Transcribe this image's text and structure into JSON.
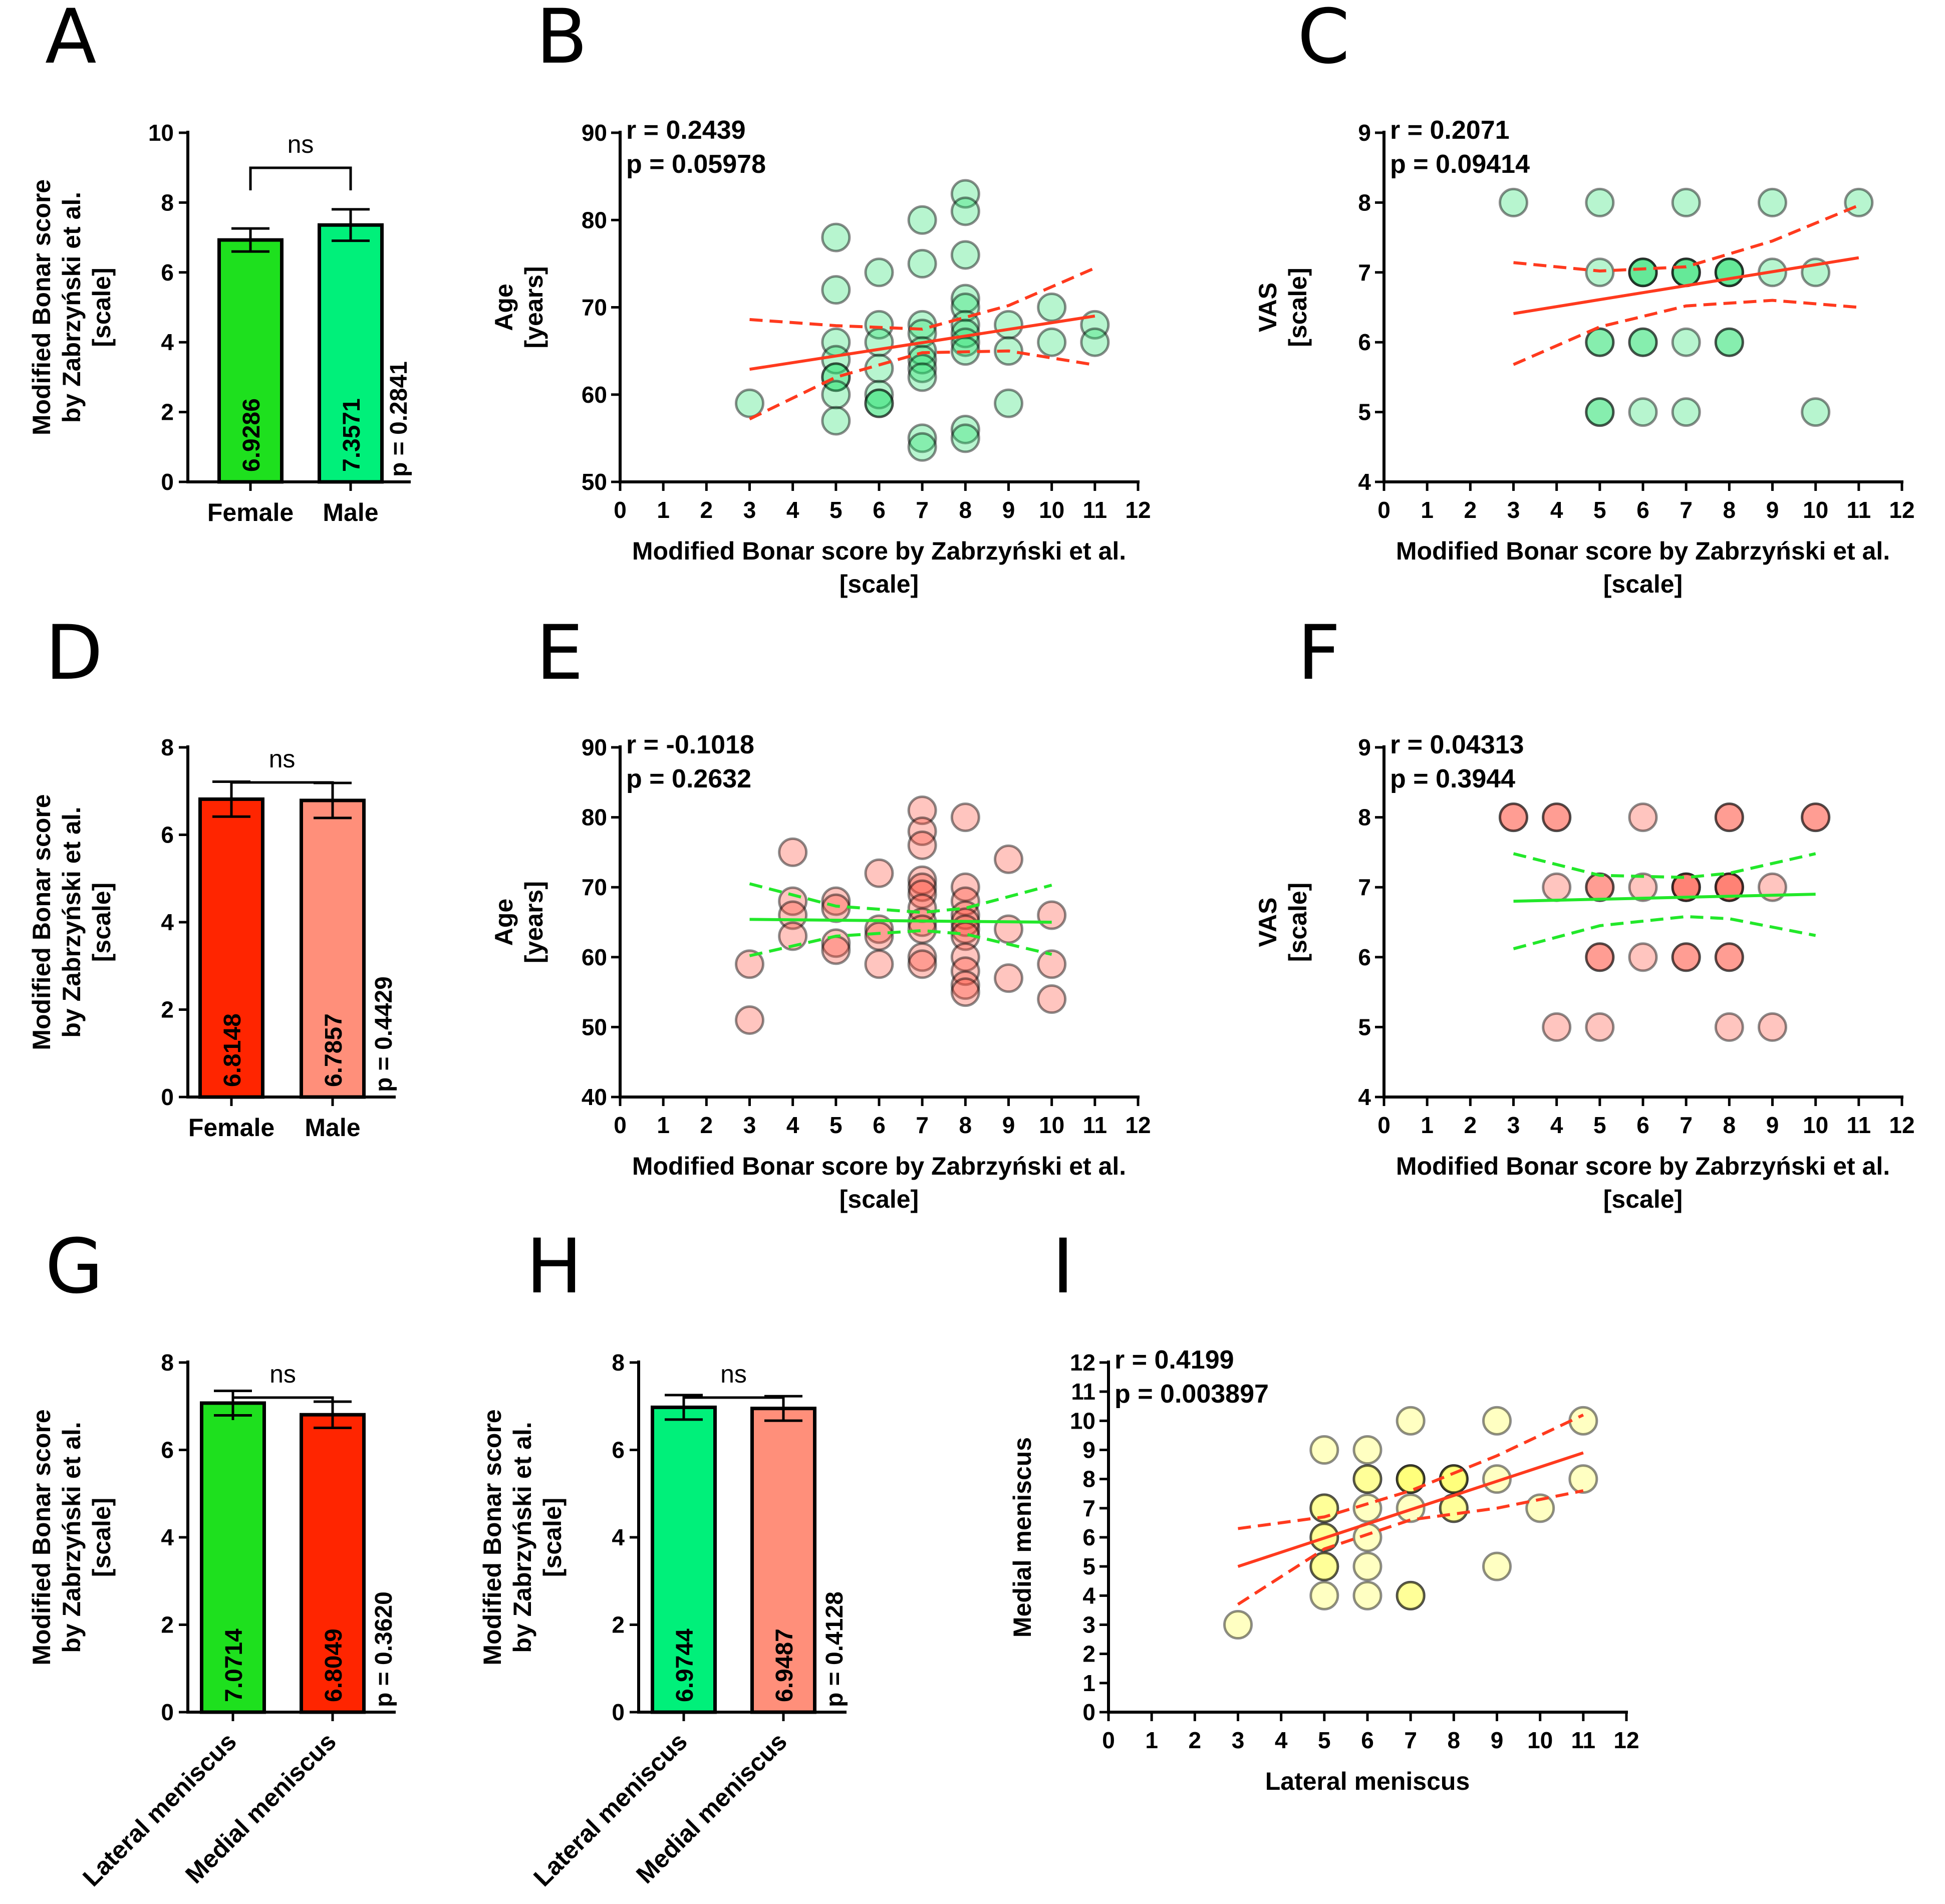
{
  "colors": {
    "green": "#1ee01e",
    "spring": "#00f07a",
    "red": "#ff2500",
    "salmon": "#ff8f7a",
    "scatter_green": "#1ee06a",
    "scatter_red": "#ff4a38",
    "scatter_yellow": "#ffff40",
    "line_red": "#ff3a1e",
    "line_green": "#22e82a"
  },
  "chart_data": [
    {
      "panel": "A",
      "type": "bar",
      "categories": [
        "Female",
        "Male"
      ],
      "values": [
        6.9286,
        7.3571
      ],
      "value_labels": [
        "6.9286",
        "7.3571"
      ],
      "errors": [
        0.33,
        0.45
      ],
      "fill_colors": [
        "#1ee01e",
        "#00f07a"
      ],
      "ylabel_lines": [
        "Modified Bonar score",
        "by Zabrzyński et al.",
        "[scale]"
      ],
      "ylim": [
        0,
        10
      ],
      "yticks": [
        0,
        2,
        4,
        6,
        8,
        10
      ],
      "significance": "ns",
      "pvalue": "p = 0.2841"
    },
    {
      "panel": "B",
      "type": "scatter",
      "xlabel_lines": [
        "Modified Bonar score by Zabrzyński et al.",
        "[scale]"
      ],
      "ylabel_lines": [
        "Age",
        "[years]"
      ],
      "xlim": [
        0,
        12
      ],
      "ylim": [
        50,
        90
      ],
      "xticks": [
        0,
        1,
        2,
        3,
        4,
        5,
        6,
        7,
        8,
        9,
        10,
        11,
        12
      ],
      "yticks": [
        50,
        60,
        70,
        80,
        90
      ],
      "stat_r": "r = 0.2439",
      "stat_p": "p = 0.05978",
      "point_color": "#1ee06a",
      "line_color": "#ff3a1e",
      "points": [
        [
          3,
          59
        ],
        [
          5,
          78
        ],
        [
          5,
          72
        ],
        [
          5,
          66
        ],
        [
          5,
          64
        ],
        [
          5,
          62
        ],
        [
          5,
          62
        ],
        [
          5,
          60
        ],
        [
          5,
          57
        ],
        [
          6,
          74
        ],
        [
          6,
          68
        ],
        [
          6,
          66
        ],
        [
          6,
          63
        ],
        [
          6,
          60
        ],
        [
          6,
          59
        ],
        [
          6,
          59
        ],
        [
          7,
          80
        ],
        [
          7,
          75
        ],
        [
          7,
          68
        ],
        [
          7,
          67
        ],
        [
          7,
          65
        ],
        [
          7,
          64
        ],
        [
          7,
          63
        ],
        [
          7,
          62
        ],
        [
          7,
          55
        ],
        [
          7,
          54
        ],
        [
          8,
          83
        ],
        [
          8,
          81
        ],
        [
          8,
          76
        ],
        [
          8,
          71
        ],
        [
          8,
          70
        ],
        [
          8,
          68
        ],
        [
          8,
          67
        ],
        [
          8,
          66
        ],
        [
          8,
          65
        ],
        [
          8,
          56
        ],
        [
          8,
          55
        ],
        [
          9,
          68
        ],
        [
          9,
          65
        ],
        [
          9,
          59
        ],
        [
          10,
          70
        ],
        [
          10,
          66
        ],
        [
          11,
          68
        ],
        [
          11,
          66
        ]
      ],
      "fit": {
        "x0": 3,
        "y0": 62.9,
        "x1": 11,
        "y1": 69.0
      },
      "ci_upper": [
        [
          3,
          68.6
        ],
        [
          5,
          67.9
        ],
        [
          7,
          67.5
        ],
        [
          9,
          70.2
        ],
        [
          11,
          74.5
        ]
      ],
      "ci_lower": [
        [
          3,
          57.2
        ],
        [
          5,
          62.0
        ],
        [
          7,
          64.8
        ],
        [
          9,
          65.0
        ],
        [
          11,
          63.4
        ]
      ]
    },
    {
      "panel": "C",
      "type": "scatter",
      "xlabel_lines": [
        "Modified Bonar score by Zabrzyński et al.",
        "[scale]"
      ],
      "ylabel_lines": [
        "VAS",
        "[scale]"
      ],
      "xlim": [
        0,
        12
      ],
      "ylim": [
        4,
        9
      ],
      "xticks": [
        0,
        1,
        2,
        3,
        4,
        5,
        6,
        7,
        8,
        9,
        10,
        11,
        12
      ],
      "yticks": [
        4,
        5,
        6,
        7,
        8,
        9
      ],
      "stat_r": "r = 0.2071",
      "stat_p": "p = 0.09414",
      "point_color": "#1ee06a",
      "line_color": "#ff3a1e",
      "points": [
        [
          3,
          8
        ],
        [
          5,
          8
        ],
        [
          7,
          8
        ],
        [
          9,
          8
        ],
        [
          11,
          8
        ],
        [
          5,
          7
        ],
        [
          6,
          7
        ],
        [
          6,
          7
        ],
        [
          6,
          7
        ],
        [
          7,
          7
        ],
        [
          7,
          7
        ],
        [
          7,
          7
        ],
        [
          8,
          7
        ],
        [
          8,
          7
        ],
        [
          8,
          7
        ],
        [
          9,
          7
        ],
        [
          10,
          7
        ],
        [
          5,
          6
        ],
        [
          5,
          6
        ],
        [
          6,
          6
        ],
        [
          6,
          6
        ],
        [
          7,
          6
        ],
        [
          8,
          6
        ],
        [
          8,
          6
        ],
        [
          5,
          5
        ],
        [
          5,
          5
        ],
        [
          6,
          5
        ],
        [
          7,
          5
        ],
        [
          10,
          5
        ]
      ],
      "fit": {
        "x0": 3,
        "y0": 6.41,
        "x1": 11,
        "y1": 7.21
      },
      "ci_upper": [
        [
          3,
          7.14
        ],
        [
          5,
          7.02
        ],
        [
          7,
          7.08
        ],
        [
          9,
          7.45
        ],
        [
          11,
          7.96
        ]
      ],
      "ci_lower": [
        [
          3,
          5.68
        ],
        [
          5,
          6.22
        ],
        [
          7,
          6.52
        ],
        [
          9,
          6.6
        ],
        [
          11,
          6.5
        ]
      ]
    },
    {
      "panel": "D",
      "type": "bar",
      "categories": [
        "Female",
        "Male"
      ],
      "values": [
        6.8148,
        6.7857
      ],
      "value_labels": [
        "6.8148",
        "6.7857"
      ],
      "errors": [
        0.4,
        0.4
      ],
      "fill_colors": [
        "#ff2500",
        "#ff8f7a"
      ],
      "ylabel_lines": [
        "Modified Bonar score",
        "by Zabrzyński et al.",
        "[scale]"
      ],
      "ylim": [
        0,
        8
      ],
      "yticks": [
        0,
        2,
        4,
        6,
        8
      ],
      "significance": "ns",
      "pvalue": "p = 0.4429"
    },
    {
      "panel": "E",
      "type": "scatter",
      "xlabel_lines": [
        "Modified Bonar score by Zabrzyński et al.",
        "[scale]"
      ],
      "ylabel_lines": [
        "Age",
        "[years]"
      ],
      "xlim": [
        0,
        12
      ],
      "ylim": [
        40,
        90
      ],
      "xticks": [
        0,
        1,
        2,
        3,
        4,
        5,
        6,
        7,
        8,
        9,
        10,
        11,
        12
      ],
      "yticks": [
        40,
        50,
        60,
        70,
        80,
        90
      ],
      "stat_r": "r = -0.1018",
      "stat_p": "p = 0.2632",
      "point_color": "#ff4a38",
      "line_color": "#22e82a",
      "points": [
        [
          3,
          59
        ],
        [
          3,
          51
        ],
        [
          4,
          75
        ],
        [
          4,
          68
        ],
        [
          4,
          66
        ],
        [
          4,
          63
        ],
        [
          5,
          68
        ],
        [
          5,
          67
        ],
        [
          5,
          62
        ],
        [
          5,
          61
        ],
        [
          6,
          72
        ],
        [
          6,
          64
        ],
        [
          6,
          63
        ],
        [
          6,
          59
        ],
        [
          7,
          81
        ],
        [
          7,
          78
        ],
        [
          7,
          76
        ],
        [
          7,
          71
        ],
        [
          7,
          70
        ],
        [
          7,
          69
        ],
        [
          7,
          67
        ],
        [
          7,
          65
        ],
        [
          7,
          64
        ],
        [
          7,
          60
        ],
        [
          7,
          59
        ],
        [
          8,
          80
        ],
        [
          8,
          70
        ],
        [
          8,
          68
        ],
        [
          8,
          66
        ],
        [
          8,
          65
        ],
        [
          8,
          64
        ],
        [
          8,
          63
        ],
        [
          8,
          60
        ],
        [
          8,
          58
        ],
        [
          8,
          56
        ],
        [
          8,
          55
        ],
        [
          9,
          74
        ],
        [
          9,
          64
        ],
        [
          9,
          57
        ],
        [
          10,
          66
        ],
        [
          10,
          59
        ],
        [
          10,
          54
        ]
      ],
      "fit": {
        "x0": 3,
        "y0": 65.4,
        "x1": 10,
        "y1": 65.0
      },
      "ci_upper": [
        [
          3,
          70.5
        ],
        [
          5,
          67.3
        ],
        [
          7,
          66.4
        ],
        [
          8,
          67.0
        ],
        [
          10,
          70.3
        ]
      ],
      "ci_lower": [
        [
          3,
          60.2
        ],
        [
          5,
          63.0
        ],
        [
          7,
          63.8
        ],
        [
          8,
          63.3
        ],
        [
          10,
          60.4
        ]
      ]
    },
    {
      "panel": "F",
      "type": "scatter",
      "xlabel_lines": [
        "Modified Bonar score by Zabrzyński et al.",
        "[scale]"
      ],
      "ylabel_lines": [
        "VAS",
        "[scale]"
      ],
      "xlim": [
        0,
        12
      ],
      "ylim": [
        4,
        9
      ],
      "xticks": [
        0,
        1,
        2,
        3,
        4,
        5,
        6,
        7,
        8,
        9,
        10,
        11,
        12
      ],
      "yticks": [
        4,
        5,
        6,
        7,
        8,
        9
      ],
      "stat_r": "r = 0.04313",
      "stat_p": "p = 0.3944",
      "point_color": "#ff4a38",
      "line_color": "#22e82a",
      "points": [
        [
          3,
          8
        ],
        [
          3,
          8
        ],
        [
          4,
          8
        ],
        [
          4,
          8
        ],
        [
          6,
          8
        ],
        [
          8,
          8
        ],
        [
          8,
          8
        ],
        [
          10,
          8
        ],
        [
          10,
          8
        ],
        [
          4,
          7
        ],
        [
          5,
          7
        ],
        [
          5,
          7
        ],
        [
          6,
          7
        ],
        [
          7,
          7
        ],
        [
          7,
          7
        ],
        [
          7,
          7
        ],
        [
          8,
          7
        ],
        [
          8,
          7
        ],
        [
          8,
          7
        ],
        [
          9,
          7
        ],
        [
          5,
          6
        ],
        [
          5,
          6
        ],
        [
          6,
          6
        ],
        [
          7,
          6
        ],
        [
          7,
          6
        ],
        [
          8,
          6
        ],
        [
          8,
          6
        ],
        [
          4,
          5
        ],
        [
          5,
          5
        ],
        [
          8,
          5
        ],
        [
          9,
          5
        ]
      ],
      "fit": {
        "x0": 3,
        "y0": 6.8,
        "x1": 10,
        "y1": 6.9
      },
      "ci_upper": [
        [
          3,
          7.48
        ],
        [
          5,
          7.17
        ],
        [
          7,
          7.14
        ],
        [
          8,
          7.2
        ],
        [
          10,
          7.48
        ]
      ],
      "ci_lower": [
        [
          3,
          6.12
        ],
        [
          5,
          6.45
        ],
        [
          7,
          6.58
        ],
        [
          8,
          6.55
        ],
        [
          10,
          6.31
        ]
      ]
    },
    {
      "panel": "G",
      "type": "bar",
      "categories": [
        "Lateral meniscus",
        "Medial meniscus"
      ],
      "values": [
        7.0714,
        6.8049
      ],
      "value_labels": [
        "7.0714",
        "6.8049"
      ],
      "errors": [
        0.28,
        0.3
      ],
      "fill_colors": [
        "#1ee01e",
        "#ff2500"
      ],
      "ylabel_lines": [
        "Modified Bonar score",
        "by Zabrzyński et al.",
        "[scale]"
      ],
      "ylim": [
        0,
        8
      ],
      "yticks": [
        0,
        2,
        4,
        6,
        8
      ],
      "significance": "ns",
      "pvalue": "p = 0.3620"
    },
    {
      "panel": "H",
      "type": "bar",
      "categories": [
        "Lateral meniscus",
        "Medial meniscus"
      ],
      "values": [
        6.9744,
        6.9487
      ],
      "value_labels": [
        "6.9744",
        "6.9487"
      ],
      "errors": [
        0.28,
        0.28
      ],
      "fill_colors": [
        "#00f07a",
        "#ff8f7a"
      ],
      "ylabel_lines": [
        "Modified Bonar score",
        "by Zabrzyński et al.",
        "[scale]"
      ],
      "ylim": [
        0,
        8
      ],
      "yticks": [
        0,
        2,
        4,
        6,
        8
      ],
      "significance": "ns",
      "pvalue": "p = 0.4128"
    },
    {
      "panel": "I",
      "type": "scatter",
      "xlabel_lines": [
        "Lateral meniscus"
      ],
      "ylabel_lines": [
        "Medial meniscus"
      ],
      "xlim": [
        0,
        12
      ],
      "ylim": [
        0,
        12
      ],
      "xticks": [
        0,
        1,
        2,
        3,
        4,
        5,
        6,
        7,
        8,
        9,
        10,
        11,
        12
      ],
      "yticks": [
        0,
        1,
        2,
        3,
        4,
        5,
        6,
        7,
        8,
        9,
        10,
        11,
        12
      ],
      "stat_r": "r = 0.4199",
      "stat_p": "p = 0.003897",
      "point_color": "#ffff40",
      "line_color": "#ff3a1e",
      "points": [
        [
          3,
          3
        ],
        [
          5,
          9
        ],
        [
          5,
          7
        ],
        [
          5,
          7
        ],
        [
          5,
          6
        ],
        [
          5,
          6
        ],
        [
          5,
          5
        ],
        [
          5,
          5
        ],
        [
          5,
          4
        ],
        [
          6,
          9
        ],
        [
          6,
          8
        ],
        [
          6,
          8
        ],
        [
          6,
          7
        ],
        [
          6,
          6
        ],
        [
          6,
          5
        ],
        [
          6,
          4
        ],
        [
          7,
          10
        ],
        [
          7,
          8
        ],
        [
          7,
          8
        ],
        [
          7,
          8
        ],
        [
          7,
          7
        ],
        [
          7,
          4
        ],
        [
          7,
          4
        ],
        [
          8,
          8
        ],
        [
          8,
          8
        ],
        [
          8,
          8
        ],
        [
          8,
          7
        ],
        [
          8,
          7
        ],
        [
          9,
          10
        ],
        [
          9,
          8
        ],
        [
          9,
          5
        ],
        [
          10,
          7
        ],
        [
          11,
          10
        ],
        [
          11,
          8
        ]
      ],
      "fit": {
        "x0": 3,
        "y0": 5.0,
        "x1": 11,
        "y1": 8.9
      },
      "ci_upper": [
        [
          3,
          6.3
        ],
        [
          5,
          6.7
        ],
        [
          7,
          7.6
        ],
        [
          9,
          8.8
        ],
        [
          11,
          10.2
        ]
      ],
      "ci_lower": [
        [
          3,
          3.7
        ],
        [
          5,
          5.6
        ],
        [
          7,
          6.6
        ],
        [
          9,
          7.0
        ],
        [
          11,
          7.6
        ]
      ]
    }
  ]
}
